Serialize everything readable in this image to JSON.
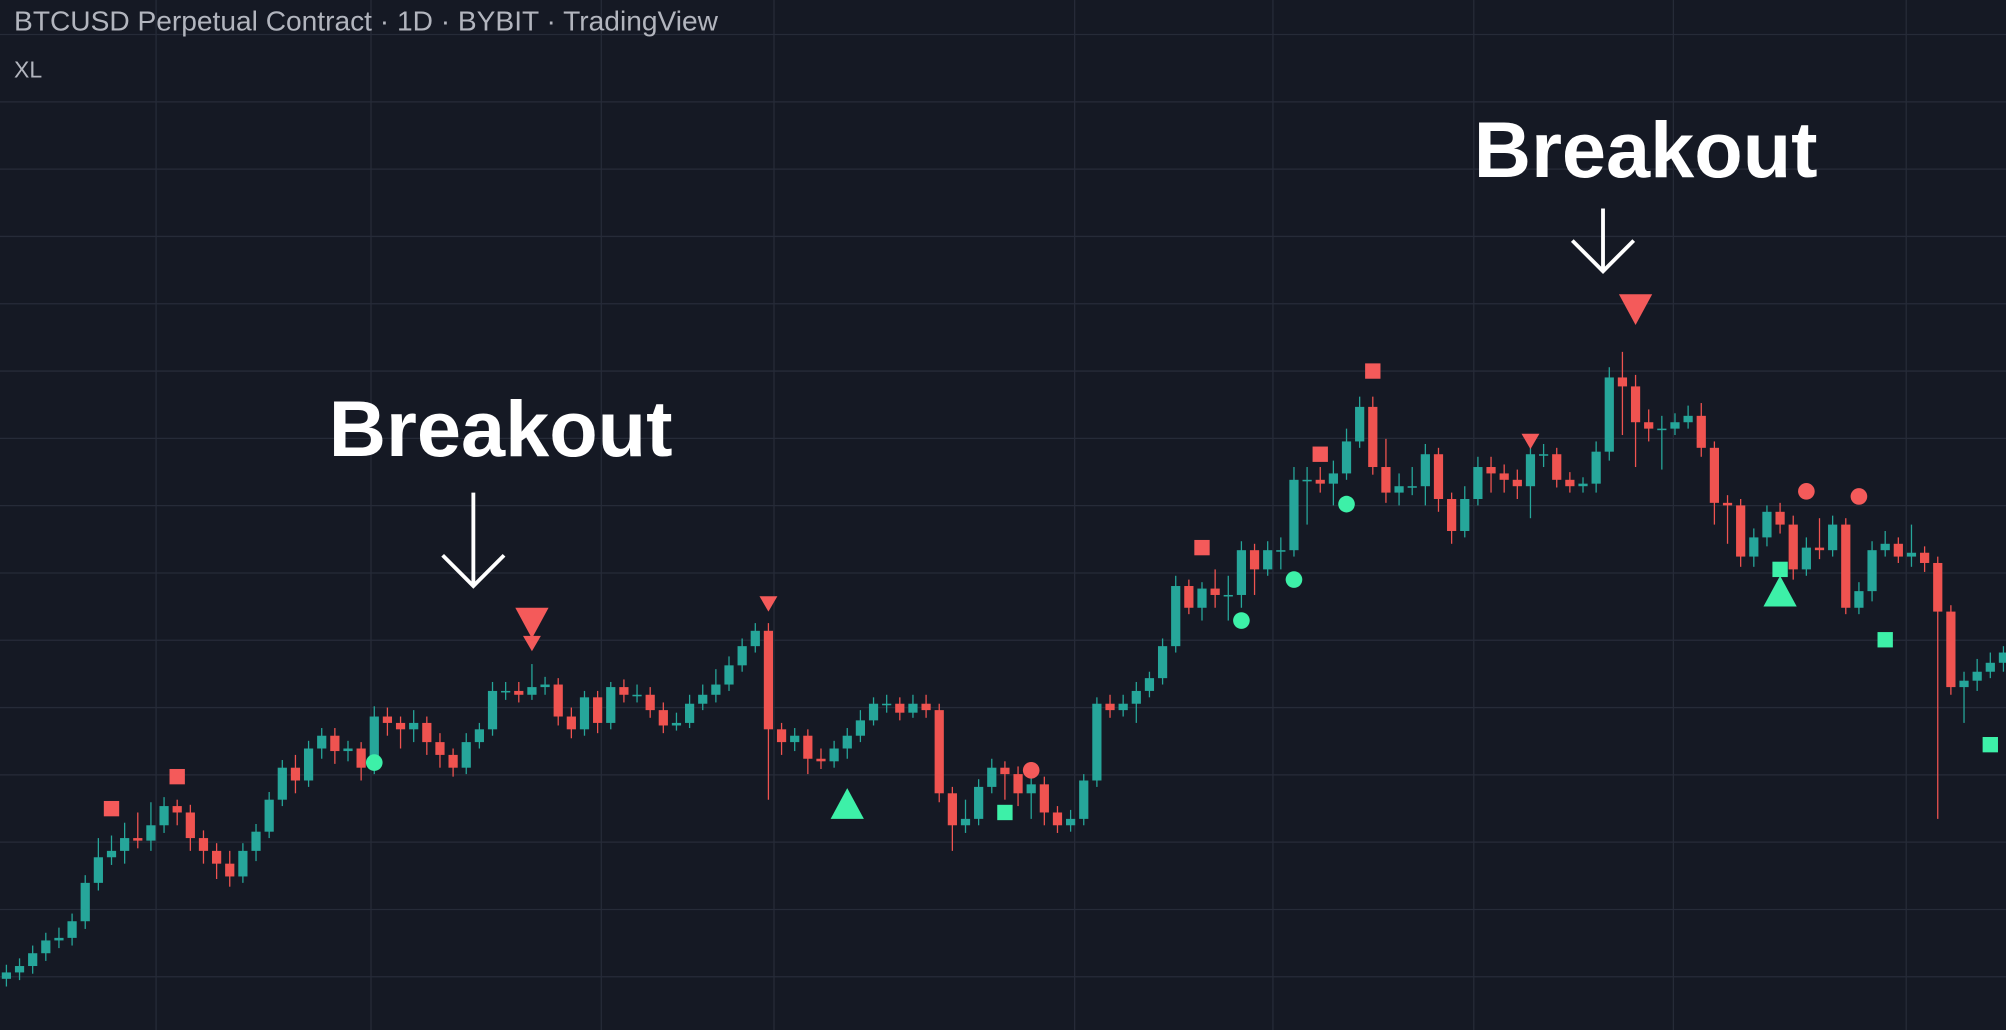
{
  "chart_data": {
    "type": "candlestick",
    "title": "BTCUSD Perpetual Contract · 1D · BYBIT · TradingView",
    "subtitle": "XL",
    "annotations": [
      "Breakout",
      "Breakout"
    ],
    "ylim": [
      0,
      805
    ],
    "up_color": "#26a69a",
    "down_color": "#ef5350",
    "open": [
      40,
      45,
      50,
      60,
      70,
      72,
      85,
      115,
      135,
      140,
      150,
      148,
      160,
      175,
      170,
      150,
      140,
      130,
      120,
      140,
      155,
      180,
      205,
      195,
      220,
      230,
      218,
      220,
      205,
      245,
      240,
      235,
      240,
      225,
      215,
      205,
      225,
      235,
      265,
      265,
      262,
      268,
      270,
      245,
      235,
      260,
      240,
      268,
      262,
      262,
      250,
      238,
      240,
      255,
      262,
      270,
      285,
      300,
      312,
      235,
      225,
      230,
      212,
      210,
      220,
      230,
      242,
      255,
      255,
      248,
      255,
      250,
      185,
      160,
      165,
      190,
      205,
      200,
      185,
      192,
      170,
      160,
      165,
      195,
      255,
      250,
      255,
      265,
      275,
      300,
      347,
      330,
      345,
      340,
      340,
      375,
      360,
      375,
      375,
      430,
      430,
      427,
      435,
      460,
      487,
      440,
      420,
      425,
      425,
      450,
      415,
      390,
      415,
      440,
      435,
      430,
      425,
      450,
      450,
      430,
      425,
      427,
      452,
      510,
      503,
      475,
      470,
      470,
      475,
      480,
      455,
      412,
      410,
      370,
      385,
      405,
      395,
      360,
      377,
      375,
      395,
      330,
      343,
      375,
      380,
      370,
      373,
      365,
      327,
      268,
      273,
      280,
      287
    ],
    "high": [
      51,
      56,
      66,
      76,
      80,
      91,
      121,
      150,
      152,
      162,
      170,
      178,
      182,
      180,
      176,
      156,
      146,
      140,
      146,
      161,
      186,
      211,
      215,
      226,
      236,
      236,
      226,
      225,
      253,
      252,
      245,
      250,
      245,
      232,
      220,
      232,
      240,
      272,
      272,
      272,
      286,
      276,
      275,
      252,
      265,
      265,
      272,
      274,
      270,
      268,
      256,
      248,
      262,
      270,
      282,
      292,
      306,
      318,
      318,
      240,
      236,
      235,
      220,
      226,
      236,
      250,
      260,
      262,
      260,
      262,
      262,
      255,
      190,
      180,
      196,
      212,
      210,
      206,
      198,
      198,
      175,
      172,
      200,
      260,
      262,
      262,
      272,
      280,
      306,
      355,
      352,
      350,
      360,
      355,
      382,
      380,
      382,
      385,
      440,
      440,
      440,
      445,
      470,
      495,
      495,
      462,
      435,
      440,
      458,
      455,
      420,
      425,
      448,
      448,
      442,
      438,
      455,
      458,
      455,
      436,
      432,
      460,
      518,
      530,
      512,
      485,
      480,
      482,
      488,
      490,
      460,
      418,
      415,
      392,
      410,
      412,
      402,
      385,
      400,
      402,
      400,
      350,
      382,
      390,
      385,
      395,
      378,
      370,
      332,
      280,
      290,
      295,
      300
    ],
    "low": [
      34,
      39,
      44,
      54,
      64,
      66,
      79,
      109,
      129,
      130,
      142,
      140,
      154,
      160,
      140,
      130,
      118,
      112,
      115,
      132,
      150,
      175,
      185,
      190,
      212,
      208,
      210,
      195,
      200,
      230,
      220,
      225,
      215,
      205,
      198,
      200,
      220,
      230,
      258,
      256,
      258,
      262,
      238,
      228,
      230,
      232,
      235,
      256,
      256,
      244,
      232,
      234,
      236,
      250,
      256,
      265,
      280,
      295,
      180,
      215,
      218,
      200,
      204,
      205,
      212,
      225,
      238,
      248,
      242,
      244,
      244,
      178,
      140,
      154,
      160,
      185,
      180,
      175,
      165,
      160,
      154,
      155,
      160,
      190,
      244,
      245,
      240,
      260,
      270,
      295,
      325,
      320,
      330,
      320,
      330,
      340,
      355,
      360,
      370,
      395,
      420,
      410,
      430,
      455,
      434,
      412,
      410,
      418,
      410,
      405,
      380,
      385,
      410,
      420,
      420,
      415,
      400,
      440,
      424,
      420,
      420,
      420,
      445,
      465,
      440,
      460,
      438,
      465,
      470,
      448,
      395,
      380,
      362,
      362,
      378,
      388,
      352,
      355,
      368,
      370,
      325,
      325,
      335,
      370,
      365,
      362,
      358,
      165,
      262,
      240,
      265,
      275,
      280
    ],
    "close": [
      45,
      50,
      60,
      70,
      72,
      85,
      115,
      135,
      140,
      150,
      148,
      160,
      175,
      170,
      150,
      140,
      130,
      120,
      140,
      155,
      180,
      205,
      195,
      220,
      230,
      218,
      220,
      205,
      245,
      240,
      235,
      240,
      225,
      215,
      205,
      225,
      235,
      265,
      265,
      262,
      268,
      270,
      245,
      235,
      260,
      240,
      268,
      262,
      262,
      250,
      238,
      240,
      255,
      262,
      270,
      285,
      300,
      312,
      235,
      225,
      230,
      212,
      210,
      220,
      230,
      242,
      255,
      255,
      248,
      255,
      250,
      185,
      160,
      165,
      190,
      205,
      200,
      185,
      192,
      170,
      160,
      165,
      195,
      255,
      250,
      255,
      265,
      275,
      300,
      347,
      330,
      345,
      340,
      340,
      375,
      360,
      375,
      375,
      430,
      430,
      427,
      435,
      460,
      487,
      440,
      420,
      425,
      425,
      450,
      415,
      390,
      415,
      440,
      435,
      430,
      425,
      450,
      450,
      430,
      425,
      427,
      452,
      510,
      503,
      475,
      470,
      470,
      475,
      480,
      455,
      412,
      410,
      370,
      385,
      405,
      395,
      360,
      377,
      375,
      395,
      330,
      343,
      375,
      380,
      370,
      373,
      365,
      327,
      268,
      273,
      280,
      287,
      295
    ],
    "markers": [
      {
        "shape": "square",
        "color": "#f45a5a",
        "index": 13,
        "value": 198
      },
      {
        "shape": "square",
        "color": "#f45a5a",
        "index": 8,
        "value": 173
      },
      {
        "shape": "circle",
        "color": "#3df0a8",
        "index": 28,
        "value": 209
      },
      {
        "shape": "triangle-down",
        "color": "#f45a5a",
        "index": 40,
        "value": 318
      },
      {
        "shape": "triangle-down-small",
        "color": "#f45a5a",
        "index": 40,
        "value": 302
      },
      {
        "shape": "triangle-down-small",
        "color": "#f45a5a",
        "index": 58,
        "value": 333
      },
      {
        "shape": "triangle-up",
        "color": "#3df0a8",
        "index": 64,
        "value": 177
      },
      {
        "shape": "square",
        "color": "#3df0a8",
        "index": 76,
        "value": 170
      },
      {
        "shape": "circle",
        "color": "#f45a5a",
        "index": 78,
        "value": 203
      },
      {
        "shape": "square",
        "color": "#f45a5a",
        "index": 91,
        "value": 377
      },
      {
        "shape": "circle",
        "color": "#3df0a8",
        "index": 94,
        "value": 320
      },
      {
        "shape": "circle",
        "color": "#3df0a8",
        "index": 98,
        "value": 352
      },
      {
        "shape": "square",
        "color": "#f45a5a",
        "index": 100,
        "value": 450
      },
      {
        "shape": "circle",
        "color": "#3df0a8",
        "index": 102,
        "value": 411
      },
      {
        "shape": "square",
        "color": "#f45a5a",
        "index": 104,
        "value": 515
      },
      {
        "shape": "triangle-down-small",
        "color": "#f45a5a",
        "index": 116,
        "value": 460
      },
      {
        "shape": "triangle-down",
        "color": "#f45a5a",
        "index": 124,
        "value": 563
      },
      {
        "shape": "square",
        "color": "#3df0a8",
        "index": 135,
        "value": 360
      },
      {
        "shape": "triangle-up",
        "color": "#3df0a8",
        "index": 135,
        "value": 343
      },
      {
        "shape": "circle",
        "color": "#f45a5a",
        "index": 137,
        "value": 421
      },
      {
        "shape": "circle",
        "color": "#f45a5a",
        "index": 141,
        "value": 417
      },
      {
        "shape": "square",
        "color": "#3df0a8",
        "index": 143,
        "value": 305
      },
      {
        "shape": "square",
        "color": "#3df0a8",
        "index": 151,
        "value": 223
      }
    ]
  }
}
